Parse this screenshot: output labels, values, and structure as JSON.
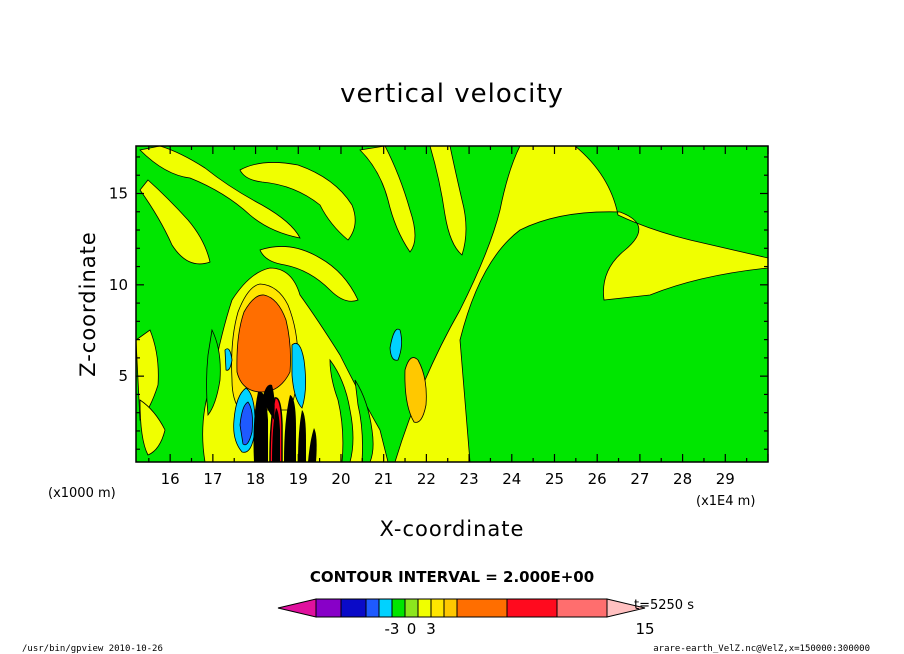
{
  "chart_data": {
    "type": "heatmap",
    "title": "vertical velocity",
    "xlabel": "X-coordinate",
    "ylabel": "Z-coordinate",
    "x_units": "(x1E4 m)",
    "y_units": "(x1000 m)",
    "xlim": [
      15.2,
      30.0
    ],
    "ylim": [
      0.3,
      17.6
    ],
    "x_ticks": [
      16,
      17,
      18,
      19,
      20,
      21,
      22,
      23,
      24,
      25,
      26,
      27,
      28,
      29
    ],
    "y_ticks": [
      5,
      10,
      15
    ],
    "contour_interval_label": "CONTOUR INTERVAL = 2.000E+00",
    "time_label": "t=5250 s",
    "colorbar": {
      "levels": [
        -13,
        -11,
        -9,
        -7,
        -5,
        -3,
        -1,
        1,
        3,
        5,
        7,
        9,
        11,
        13,
        15
      ],
      "tick_labels": [
        "-3",
        "0",
        "3",
        "15"
      ],
      "tick_values": [
        -3,
        0,
        3,
        15
      ],
      "colors": [
        "#e0119e",
        "#8800c8",
        "#0a0ac8",
        "#1e5aff",
        "#00d2ff",
        "#00e600",
        "#8ce61e",
        "#f0ff00",
        "#ffe600",
        "#ffc800",
        "#ff6e00",
        "#ff0a1e",
        "#ff6e6e",
        "#ffc0c0"
      ]
    },
    "grid": false,
    "legend": "colorbar-bottom"
  },
  "footer": {
    "left": "/usr/bin/gpview  2010-10-26",
    "right": "arare-earth_VelZ.nc@VelZ,x=150000:300000"
  }
}
